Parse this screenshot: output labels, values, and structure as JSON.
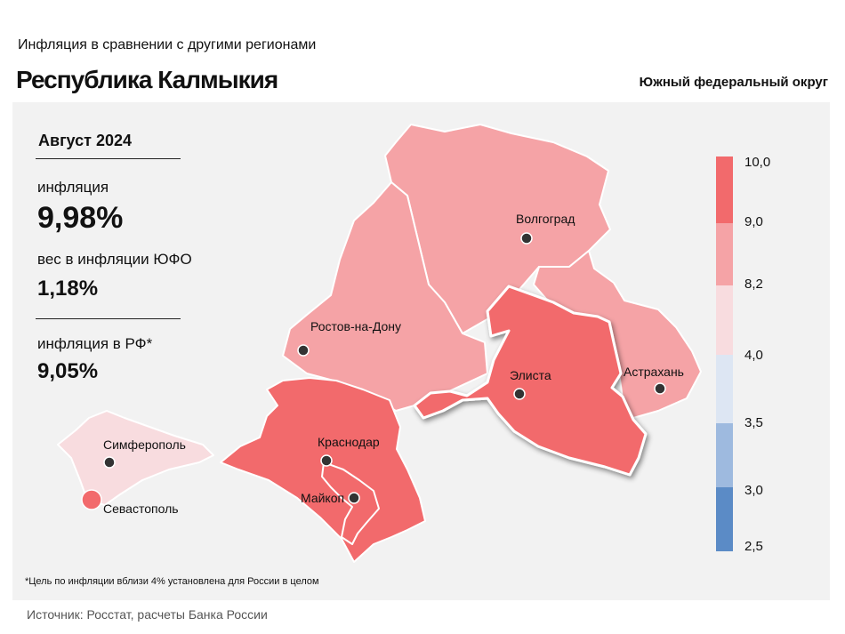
{
  "header": {
    "supertitle": "Инфляция в сравнении с другими регионами",
    "title": "Республика Калмыкия",
    "district": "Южный федеральный округ"
  },
  "stats": {
    "month": "Август 2024",
    "inflation_label": "инфляция",
    "inflation_value": "9,98%",
    "weight_label": "вес в инфляции ЮФО",
    "weight_value": "1,18%",
    "rf_label": "инфляция в РФ*",
    "rf_value": "9,05%"
  },
  "footnote": "*Цель по инфляции вблизи 4% установлена для России в целом",
  "source": "Источник: Росстат, расчеты Банка России",
  "legend": {
    "ticks": [
      "10,0",
      "9,0",
      "8,2",
      "4,0",
      "3,5",
      "3,0",
      "2,5"
    ],
    "colors": [
      "#f26a6c",
      "#f5a3a6",
      "#f8dcdf",
      "#dde6f3",
      "#9ebadf",
      "#5b8bc6"
    ]
  },
  "cities": {
    "volgograd": "Волгоград",
    "rostov": "Ростов-на-Дону",
    "elista": "Элиста",
    "astrakhan": "Астрахань",
    "krasnodar": "Краснодар",
    "maykop": "Майкоп",
    "simferopol": "Симферополь",
    "sevastopol": "Севастополь"
  },
  "region_colors": {
    "kalmykia": "#f26a6c",
    "volgograd": "#f5a3a6",
    "rostov": "#f5a3a6",
    "astrakhan": "#f5a3a6",
    "krasnodar": "#f26a6c",
    "adygea": "#f26a6c",
    "crimea": "#f8dcdf",
    "sevastopol": "#f26a6c"
  }
}
